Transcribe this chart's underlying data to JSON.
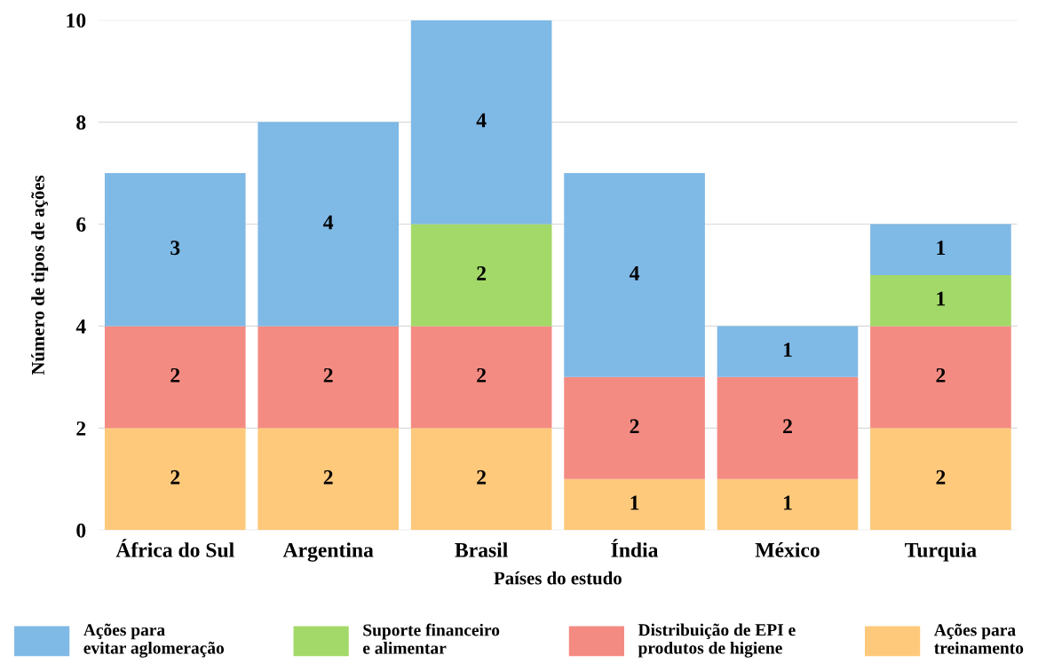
{
  "chart_data": {
    "type": "bar",
    "stacked": true,
    "xlabel": "Países do estudo",
    "ylabel": "Número de tipos de ações",
    "categories": [
      "África do Sul",
      "Argentina",
      "Brasil",
      "Índia",
      "México",
      "Turquia"
    ],
    "series": [
      {
        "name": "Ações para\ntreinamento",
        "color": "#fec97b",
        "values": [
          2,
          2,
          2,
          1,
          1,
          2
        ]
      },
      {
        "name": "Distribuição de EPI e\nprodutos de higiene",
        "color": "#f48b82",
        "values": [
          2,
          2,
          2,
          2,
          2,
          2
        ]
      },
      {
        "name": "Suporte financeiro\ne alimentar",
        "color": "#a3d968",
        "values": [
          null,
          null,
          2,
          null,
          null,
          1
        ]
      },
      {
        "name": "Ações para\nevitar aglomeração",
        "color": "#7fb9e6",
        "values": [
          3,
          4,
          4,
          4,
          1,
          1
        ]
      }
    ],
    "ylim": [
      0,
      10
    ],
    "yticks": [
      0,
      2,
      4,
      6,
      8,
      10
    ],
    "grid": "y",
    "legend": "bottom",
    "data_labels": true
  }
}
